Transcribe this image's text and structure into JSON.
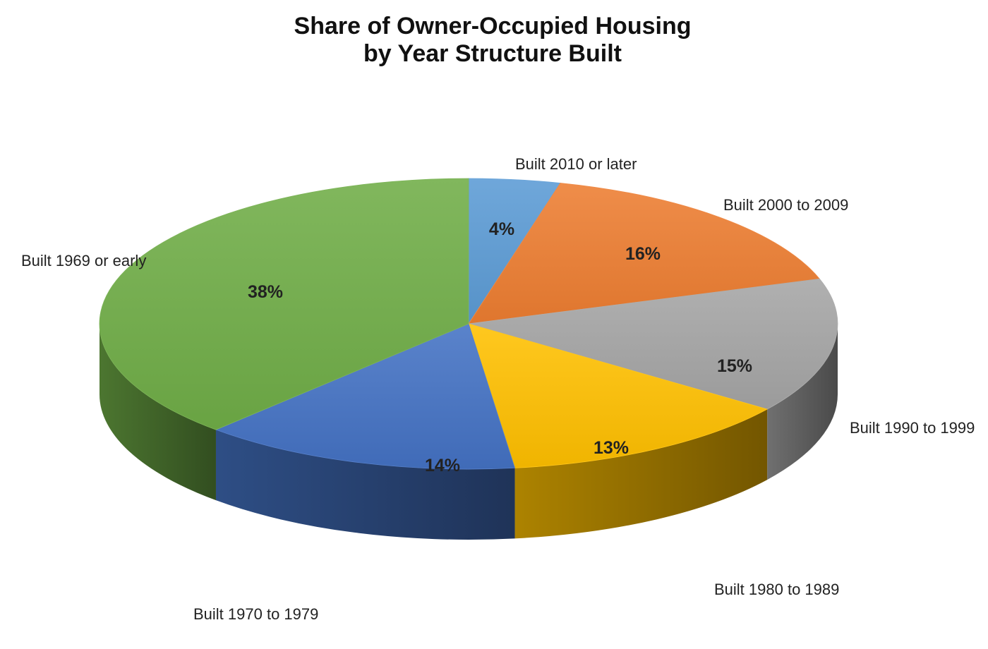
{
  "chart_data": {
    "type": "pie",
    "title_line1": "Share of Owner-Occupied Housing",
    "title_line2": "by Year Structure Built",
    "style": "3d",
    "start_angle_deg": 0,
    "direction": "clockwise",
    "slices": [
      {
        "key": "s2010",
        "label": "Built 2010 or later",
        "value": 4,
        "value_label": "4%",
        "color": "#5b9bd5"
      },
      {
        "key": "s2000",
        "label": "Built 2000 to 2009",
        "value": 16,
        "value_label": "16%",
        "color": "#ed7d31"
      },
      {
        "key": "s1990",
        "label": "Built 1990 to 1999",
        "value": 15,
        "value_label": "15%",
        "color": "#a5a5a5"
      },
      {
        "key": "s1980",
        "label": "Built 1980 to 1989",
        "value": 13,
        "value_label": "13%",
        "color": "#ffc000"
      },
      {
        "key": "s1970",
        "label": "Built 1970 to 1979",
        "value": 14,
        "value_label": "14%",
        "color": "#4472c4"
      },
      {
        "key": "s1969",
        "label": "Built 1969 or early",
        "value": 38,
        "value_label": "38%",
        "color": "#70ad47"
      }
    ]
  }
}
